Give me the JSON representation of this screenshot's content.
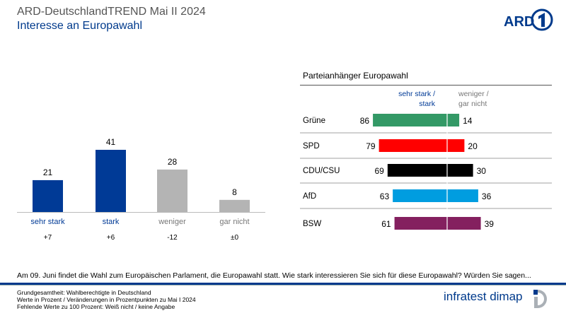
{
  "header": {
    "title": "ARD-DeutschlandTREND Mai II 2024",
    "subtitle": "Interesse an Europawahl",
    "logo_text": "ARD"
  },
  "chart_data": [
    {
      "type": "bar",
      "categories": [
        "sehr stark",
        "stark",
        "weniger",
        "gar nicht"
      ],
      "values": [
        21,
        41,
        28,
        8
      ],
      "changes": [
        "+7",
        "+6",
        "-12",
        "±0"
      ],
      "colors": [
        "#003a96",
        "#003a96",
        "#b4b4b4",
        "#b4b4b4"
      ],
      "label_colors": [
        "#003a96",
        "#003a96",
        "#777777",
        "#777777"
      ],
      "ylim": [
        0,
        45
      ]
    },
    {
      "type": "bar",
      "orientation": "horizontal-diverging",
      "title": "Parteianhänger Europawahl",
      "legend": {
        "left": "sehr stark / stark",
        "right": "weniger / gar nicht",
        "left_color": "#003a96",
        "right_color": "#777777"
      },
      "categories": [
        "Grüne",
        "SPD",
        "CDU/CSU",
        "AfD",
        "BSW"
      ],
      "series": [
        {
          "name": "sehr stark / stark",
          "values": [
            86,
            79,
            69,
            63,
            61
          ]
        },
        {
          "name": "weniger / gar nicht",
          "values": [
            14,
            20,
            30,
            36,
            39
          ]
        }
      ],
      "colors": [
        "#339966",
        "#ff0000",
        "#000000",
        "#009de0",
        "#84205f"
      ]
    }
  ],
  "question": "Am 09. Juni findet die Wahl zum Europäischen Parlament, die Europawahl statt. Wie stark interessieren Sie sich für diese Europawahl? Würden Sie sagen...",
  "footer": {
    "lines": [
      "Grundgesamtheit: Wahlberechtigte in Deutschland",
      "Werte in Prozent / Veränderungen in Prozentpunkten zu Mai I 2024",
      "Fehlende Werte zu 100 Prozent: Weiß nicht / keine Angabe"
    ],
    "brand": "infratest dimap"
  }
}
